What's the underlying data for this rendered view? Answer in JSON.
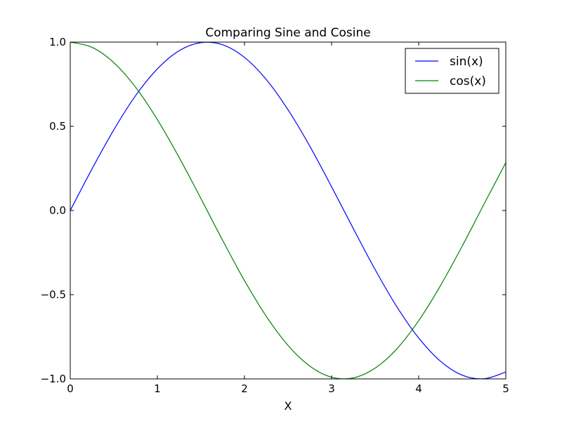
{
  "chart_data": {
    "type": "line",
    "title": "Comparing Sine and Cosine",
    "xlabel": "X",
    "ylabel": "",
    "xlim": [
      0,
      5
    ],
    "ylim": [
      -1.0,
      1.0
    ],
    "x_ticks": [
      0,
      1,
      2,
      3,
      4,
      5
    ],
    "x_tick_labels": [
      "0",
      "1",
      "2",
      "3",
      "4",
      "5"
    ],
    "y_ticks": [
      -1.0,
      -0.5,
      0.0,
      0.5,
      1.0
    ],
    "y_tick_labels": [
      "−1.0",
      "−0.5",
      "0.0",
      "0.5",
      "1.0"
    ],
    "grid": false,
    "legend_position": "top-right",
    "x": [
      0.0,
      0.25,
      0.5,
      0.75,
      1.0,
      1.25,
      1.5,
      1.75,
      2.0,
      2.25,
      2.5,
      2.75,
      3.0,
      3.25,
      3.5,
      3.75,
      4.0,
      4.25,
      4.5,
      4.75,
      5.0
    ],
    "series": [
      {
        "name": "sin(x)",
        "color": "#0000ff",
        "values": [
          0.0,
          0.247,
          0.479,
          0.682,
          0.841,
          0.949,
          0.997,
          0.984,
          0.909,
          0.778,
          0.598,
          0.382,
          0.141,
          -0.108,
          -0.351,
          -0.572,
          -0.757,
          -0.895,
          -0.978,
          -0.999,
          -0.959
        ]
      },
      {
        "name": "cos(x)",
        "color": "#008000",
        "values": [
          1.0,
          0.969,
          0.878,
          0.732,
          0.54,
          0.315,
          0.071,
          -0.178,
          -0.416,
          -0.628,
          -0.801,
          -0.924,
          -0.99,
          -0.994,
          -0.936,
          -0.821,
          -0.654,
          -0.446,
          -0.211,
          0.038,
          0.284
        ]
      }
    ]
  }
}
